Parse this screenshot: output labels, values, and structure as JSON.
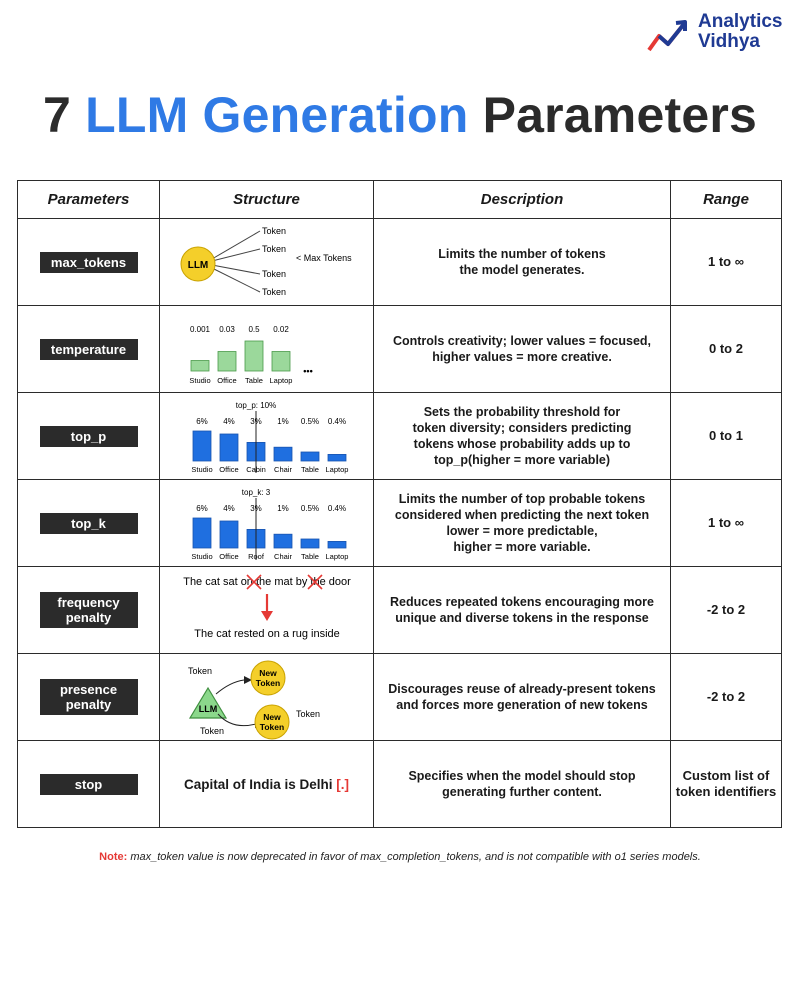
{
  "brand": {
    "line1": "Analytics",
    "line2": "Vidhya"
  },
  "title": {
    "number": "7",
    "highlight": "LLM Generation",
    "rest": "Parameters"
  },
  "table": {
    "headers": [
      "Parameters",
      "Structure",
      "Description",
      "Range"
    ],
    "rows": [
      {
        "param": "max_tokens",
        "desc": "Limits the number of tokens\nthe model generates.",
        "range": "1 to ∞"
      },
      {
        "param": "temperature",
        "desc": "Controls creativity; lower values = focused,\nhigher values = more creative.",
        "range": "0 to 2"
      },
      {
        "param": "top_p",
        "desc": "Sets the probability threshold for\ntoken diversity; considers predicting\ntokens whose probability adds up to\ntop_p(higher = more variable)",
        "range": "0 to 1"
      },
      {
        "param": "top_k",
        "desc": "Limits the number of top probable tokens\nconsidered when predicting the next token\nlower = more predictable,\nhigher = more variable.",
        "range": "1 to ∞"
      },
      {
        "param": "frequency\npenalty",
        "desc": "Reduces repeated tokens encouraging more\nunique and diverse tokens in the response",
        "range": "-2 to 2"
      },
      {
        "param": "presence\npenalty",
        "desc": "Discourages reuse of already-present tokens\nand forces more generation of new tokens",
        "range": "-2 to 2"
      },
      {
        "param": "stop",
        "desc": "Specifies when the model should stop\ngenerating further content.",
        "range": "Custom list of\ntoken identifiers"
      }
    ]
  },
  "structures": {
    "max_tokens": {
      "center": "LLM",
      "tokens": [
        "Token",
        "Token",
        "Token",
        "Token"
      ],
      "note": "< Max Tokens"
    },
    "temperature": {
      "words": [
        "Studio",
        "Office",
        "Table",
        "Laptop",
        "•••"
      ],
      "values": [
        "0.001",
        "0.03",
        "0.5",
        "0.02",
        ""
      ],
      "heights": [
        0.35,
        0.65,
        1.0,
        0.65,
        0.35
      ]
    },
    "top_p": {
      "label": "top_p: 10%",
      "words": [
        "Studio",
        "Office",
        "Cabin",
        "Chair",
        "Table",
        "Laptop"
      ],
      "values": [
        "6%",
        "4%",
        "3%",
        "1%",
        "0.5%",
        "0.4%"
      ],
      "heights": [
        1.0,
        0.9,
        0.62,
        0.46,
        0.3,
        0.22
      ]
    },
    "top_k": {
      "label": "top_k: 3",
      "words": [
        "Studio",
        "Office",
        "Roof",
        "Chair",
        "Table",
        "Laptop"
      ],
      "values": [
        "6%",
        "4%",
        "3%",
        "1%",
        "0.5%",
        "0.4%"
      ],
      "heights": [
        1.0,
        0.9,
        0.62,
        0.46,
        0.3,
        0.22
      ]
    },
    "frequency_penalty": {
      "line1_parts": [
        "The cat sat on ",
        "the",
        " mat by ",
        "the",
        " door"
      ],
      "line2": "The cat rested on a rug inside"
    },
    "presence_penalty": {
      "center": "LLM",
      "token_top": "Token",
      "new_top": [
        "New",
        "Token"
      ],
      "token_right": "Token",
      "new_bottom": [
        "New",
        "Token"
      ],
      "token_bottom": "Token"
    },
    "stop": {
      "text": "Capital of India is Delhi ",
      "marker": "[.]"
    }
  },
  "note": {
    "label": "Note:",
    "text": " max_token value is now deprecated in favor of max_completion_tokens, and is not compatible with o1 series models."
  },
  "colors": {
    "accent_blue": "#2f7ae5",
    "bar_blue": "#1f6fe0",
    "bar_green": "#9bd89b",
    "llm_yellow": "#f4cf2a",
    "llm_green": "#8bd88b",
    "red": "#e53935"
  }
}
